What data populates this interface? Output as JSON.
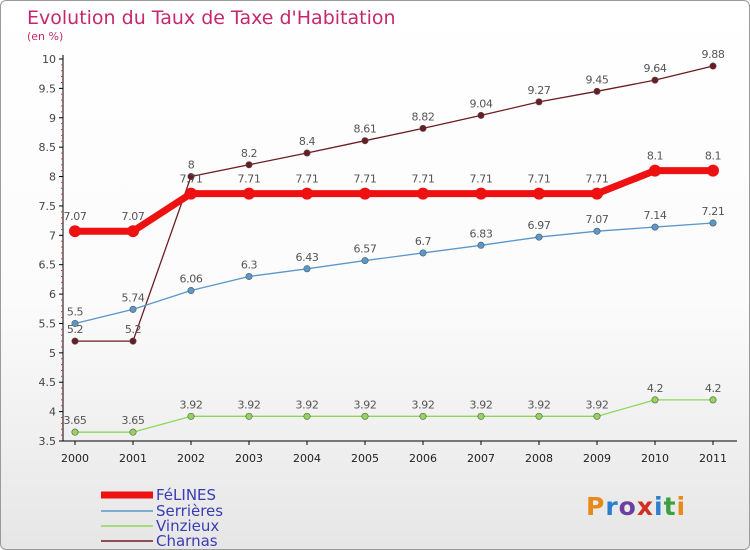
{
  "title": "Evolution du Taux de Taxe d'Habitation",
  "unit": "(en %)",
  "brand": {
    "text": "Proxiti",
    "colors": [
      "#e88a1a",
      "#2a7fd0",
      "#6a3fa0",
      "#d23020",
      "#2a7fd0",
      "#3aa040",
      "#e88a1a"
    ]
  },
  "chart_data": {
    "type": "line",
    "x": [
      "2000",
      "2001",
      "2002",
      "2003",
      "2004",
      "2005",
      "2006",
      "2007",
      "2008",
      "2009",
      "2010",
      "2011"
    ],
    "yticks": [
      "3.5",
      "4",
      "4.5",
      "5",
      "5.5",
      "6",
      "6.5",
      "7",
      "7.5",
      "8",
      "8.5",
      "9",
      "9.5",
      "10"
    ],
    "ylim": [
      3.5,
      10
    ],
    "grid": false,
    "series": [
      {
        "name": "Charnas",
        "color": "#6b1c22",
        "values": [
          5.2,
          5.2,
          8,
          8.2,
          8.4,
          8.61,
          8.82,
          9.04,
          9.27,
          9.45,
          9.64,
          9.88
        ],
        "labels": [
          "5.2",
          "5.2",
          "8",
          "8.2",
          "8.4",
          "8.61",
          "8.82",
          "9.04",
          "9.27",
          "9.45",
          "9.64",
          "9.88"
        ]
      },
      {
        "name": "Serrières",
        "color": "#5a97cb",
        "values": [
          5.5,
          5.74,
          6.06,
          6.3,
          6.43,
          6.57,
          6.7,
          6.83,
          6.97,
          7.07,
          7.14,
          7.21
        ],
        "labels": [
          "5.5",
          "5.74",
          "6.06",
          "6.3",
          "6.43",
          "6.57",
          "6.7",
          "6.83",
          "6.97",
          "7.07",
          "7.14",
          "7.21"
        ]
      },
      {
        "name": "Vinzieux",
        "color": "#8fd65a",
        "values": [
          3.65,
          3.65,
          3.92,
          3.92,
          3.92,
          3.92,
          3.92,
          3.92,
          3.92,
          3.92,
          4.2,
          4.2
        ],
        "labels": [
          "3.65",
          "3.65",
          "3.92",
          "3.92",
          "3.92",
          "3.92",
          "3.92",
          "3.92",
          "3.92",
          "3.92",
          "4.2",
          "4.2"
        ]
      },
      {
        "name": "FéLINES",
        "color": "#ee1111",
        "values": [
          7.07,
          7.07,
          7.71,
          7.71,
          7.71,
          7.71,
          7.71,
          7.71,
          7.71,
          7.71,
          8.1,
          8.1
        ],
        "labels": [
          "7.07",
          "7.07",
          "7.71",
          "7.71",
          "7.71",
          "7.71",
          "7.71",
          "7.71",
          "7.71",
          "7.71",
          "8.1",
          "8.1"
        ]
      }
    ],
    "legend": [
      "FéLINES",
      "Serrières",
      "Vinzieux",
      "Charnas"
    ]
  }
}
